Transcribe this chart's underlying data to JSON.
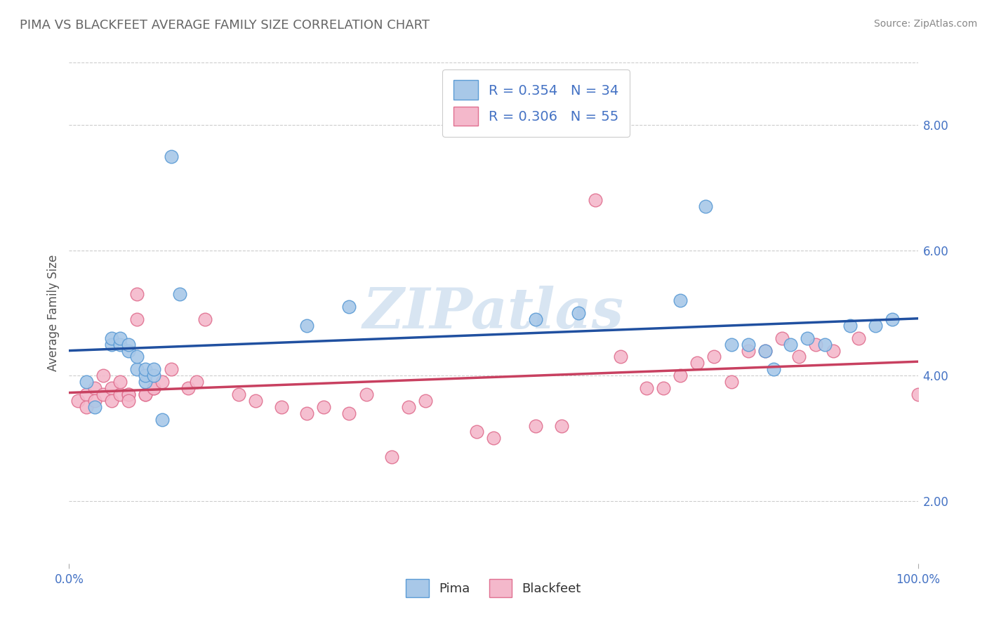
{
  "title": "PIMA VS BLACKFEET AVERAGE FAMILY SIZE CORRELATION CHART",
  "source": "Source: ZipAtlas.com",
  "ylabel": "Average Family Size",
  "xmin": 0.0,
  "xmax": 100.0,
  "ymin": 1.0,
  "ymax": 9.0,
  "right_yticks": [
    2.0,
    4.0,
    6.0,
    8.0
  ],
  "title_color": "#666666",
  "title_fontsize": 13,
  "axis_color": "#4472C4",
  "pima_color": "#A8C8E8",
  "blackfeet_color": "#F4B8CB",
  "pima_edge_color": "#5B9BD5",
  "blackfeet_edge_color": "#E07090",
  "pima_line_color": "#2050A0",
  "blackfeet_line_color": "#C84060",
  "legend_text_pima": "R = 0.354   N = 34",
  "legend_text_blackfeet": "R = 0.306   N = 55",
  "legend_label_pima": "Pima",
  "legend_label_blackfeet": "Blackfeet",
  "watermark": "ZIPatlas",
  "pima_x": [
    2,
    3,
    5,
    5,
    6,
    6,
    7,
    7,
    8,
    8,
    9,
    9,
    9,
    10,
    10,
    11,
    12,
    13,
    28,
    33,
    55,
    60,
    72,
    75,
    78,
    80,
    82,
    83,
    85,
    87,
    89,
    92,
    95,
    97
  ],
  "pima_y": [
    3.9,
    3.5,
    4.5,
    4.6,
    4.5,
    4.6,
    4.4,
    4.5,
    4.1,
    4.3,
    3.9,
    4.0,
    4.1,
    4.0,
    4.1,
    3.3,
    7.5,
    5.3,
    4.8,
    5.1,
    4.9,
    5.0,
    5.2,
    6.7,
    4.5,
    4.5,
    4.4,
    4.1,
    4.5,
    4.6,
    4.5,
    4.8,
    4.8,
    4.9
  ],
  "blackfeet_x": [
    1,
    2,
    2,
    3,
    3,
    4,
    4,
    5,
    5,
    6,
    6,
    7,
    7,
    7,
    8,
    8,
    9,
    9,
    10,
    10,
    11,
    12,
    14,
    15,
    16,
    20,
    22,
    25,
    28,
    30,
    33,
    35,
    38,
    40,
    42,
    48,
    50,
    55,
    58,
    62,
    65,
    68,
    70,
    72,
    74,
    76,
    78,
    80,
    82,
    84,
    86,
    88,
    90,
    93,
    100
  ],
  "blackfeet_y": [
    3.6,
    3.7,
    3.5,
    3.8,
    3.6,
    3.7,
    4.0,
    3.8,
    3.6,
    3.7,
    3.9,
    3.7,
    3.7,
    3.6,
    5.3,
    4.9,
    3.7,
    3.7,
    3.8,
    3.8,
    3.9,
    4.1,
    3.8,
    3.9,
    4.9,
    3.7,
    3.6,
    3.5,
    3.4,
    3.5,
    3.4,
    3.7,
    2.7,
    3.5,
    3.6,
    3.1,
    3.0,
    3.2,
    3.2,
    6.8,
    4.3,
    3.8,
    3.8,
    4.0,
    4.2,
    4.3,
    3.9,
    4.4,
    4.4,
    4.6,
    4.3,
    4.5,
    4.4,
    4.6,
    3.7
  ]
}
